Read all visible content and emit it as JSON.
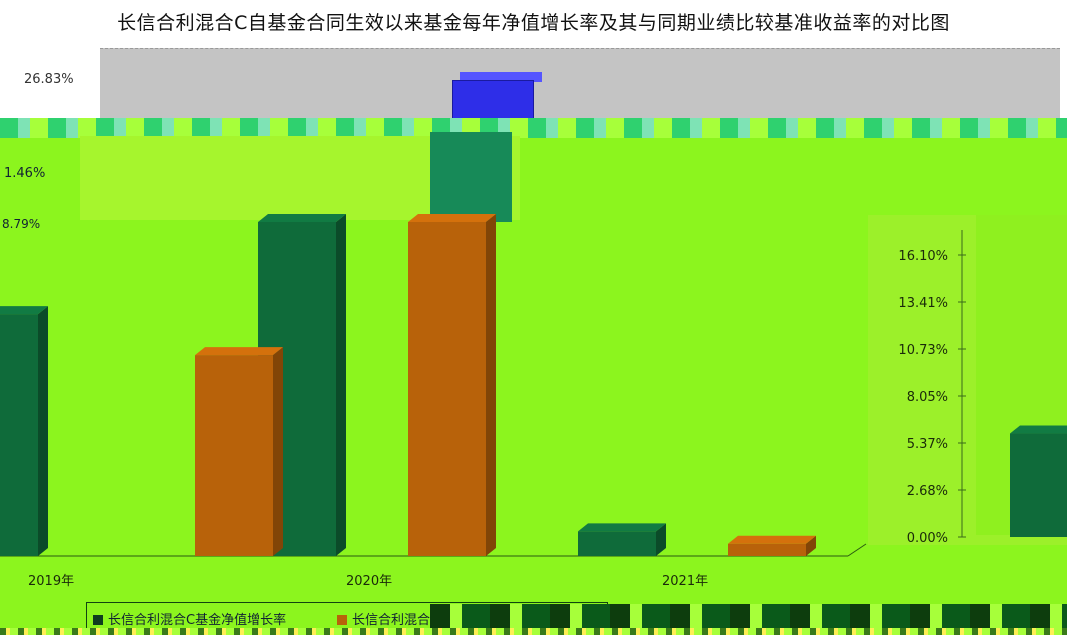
{
  "chart_data": {
    "type": "bar",
    "title": "长信合利混合C自基金合同生效以来基金每年净值增长率及其与同期业绩比较基准收益率的对比图",
    "categories": [
      "2019年",
      "2020年",
      "2021年"
    ],
    "series": [
      {
        "name": "长信合利混合C基金净值增长率",
        "values": [
          5.9,
          26.83,
          0.6
        ],
        "color": "#0f6b3a"
      },
      {
        "name": "长信合利混合C业绩比较基准收益率",
        "values": [
          4.9,
          8.5,
          0.3
        ],
        "color": "#b8620a"
      }
    ],
    "ylim": [
      0,
      21.46
    ],
    "right_axis_ticks": [
      "0.00%",
      "2.68%",
      "5.37%",
      "8.05%",
      "10.73%",
      "13.41%",
      "16.10%"
    ],
    "left_axis_visible_ticks": [
      "26.83%",
      "1.46%",
      "8.79%"
    ],
    "legend_visible_text": [
      "长信合利混合C基金净值增长率",
      "长信合利混合C业绩比"
    ],
    "colors": {
      "background": "#8cf51e",
      "fund": "#0f6b3a",
      "benchmark": "#b8620a"
    }
  }
}
